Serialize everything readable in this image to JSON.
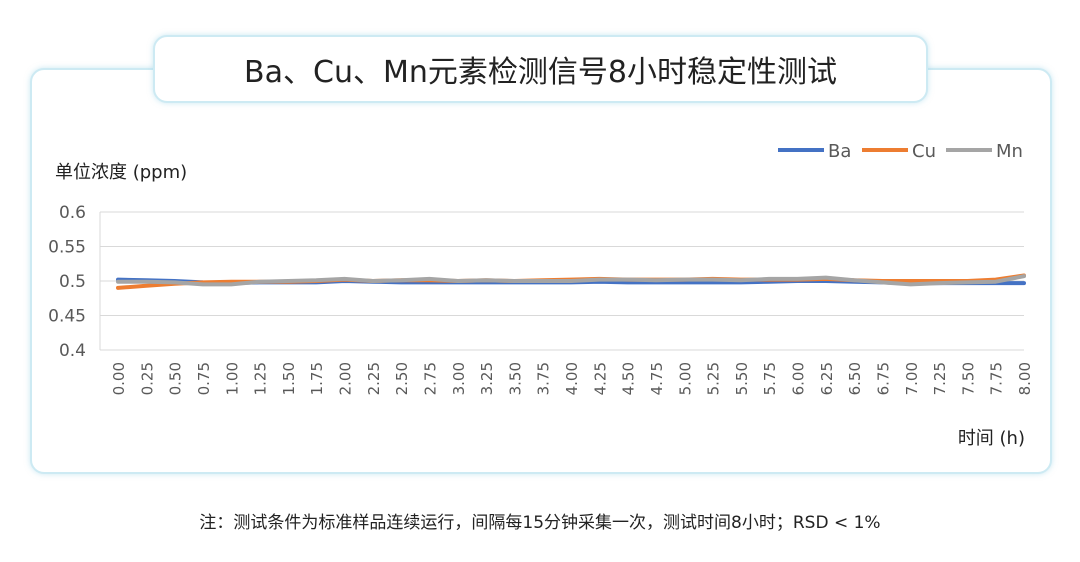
{
  "chart_data": {
    "type": "line",
    "title": "Ba、Cu、Mn元素检测信号8小时稳定性测试",
    "ylabel": "单位浓度 (ppm)",
    "xlabel": "时间 (h)",
    "ylim": [
      0.4,
      0.6
    ],
    "yticks": [
      "0.6",
      "0.55",
      "0.5",
      "0.45",
      "0.4"
    ],
    "grid": true,
    "legend": "top-right",
    "x": [
      "0.00",
      "0.25",
      "0.50",
      "0.75",
      "1.00",
      "1.25",
      "1.50",
      "1.75",
      "2.00",
      "2.25",
      "2.50",
      "2.75",
      "3.00",
      "3.25",
      "3.50",
      "3.75",
      "4.00",
      "4.25",
      "4.50",
      "4.75",
      "5.00",
      "5.25",
      "5.50",
      "5.75",
      "6.00",
      "6.25",
      "6.50",
      "6.75",
      "7.00",
      "7.25",
      "7.50",
      "7.75",
      "8.00"
    ],
    "series": [
      {
        "name": "Ba",
        "color": "#4472c4",
        "values": [
          0.502,
          0.501,
          0.5,
          0.498,
          0.497,
          0.498,
          0.498,
          0.498,
          0.5,
          0.499,
          0.498,
          0.498,
          0.498,
          0.498,
          0.498,
          0.498,
          0.498,
          0.499,
          0.498,
          0.498,
          0.498,
          0.498,
          0.498,
          0.499,
          0.5,
          0.5,
          0.499,
          0.498,
          0.497,
          0.497,
          0.497,
          0.497,
          0.497
        ]
      },
      {
        "name": "Cu",
        "color": "#ed7d31",
        "values": [
          0.49,
          0.493,
          0.496,
          0.498,
          0.499,
          0.499,
          0.499,
          0.5,
          0.502,
          0.5,
          0.501,
          0.501,
          0.5,
          0.501,
          0.5,
          0.501,
          0.502,
          0.503,
          0.502,
          0.502,
          0.502,
          0.503,
          0.502,
          0.502,
          0.502,
          0.503,
          0.501,
          0.5,
          0.5,
          0.5,
          0.5,
          0.502,
          0.508
        ]
      },
      {
        "name": "Mn",
        "color": "#a5a5a5",
        "values": [
          0.499,
          0.499,
          0.498,
          0.495,
          0.495,
          0.499,
          0.5,
          0.501,
          0.503,
          0.5,
          0.501,
          0.503,
          0.5,
          0.501,
          0.5,
          0.5,
          0.5,
          0.502,
          0.502,
          0.501,
          0.502,
          0.502,
          0.501,
          0.503,
          0.503,
          0.505,
          0.501,
          0.498,
          0.495,
          0.497,
          0.498,
          0.499,
          0.507
        ]
      }
    ]
  },
  "note": "注：测试条件为标准样品连续运行，间隔每15分钟采集一次，测试时间8小时；RSD < 1%"
}
